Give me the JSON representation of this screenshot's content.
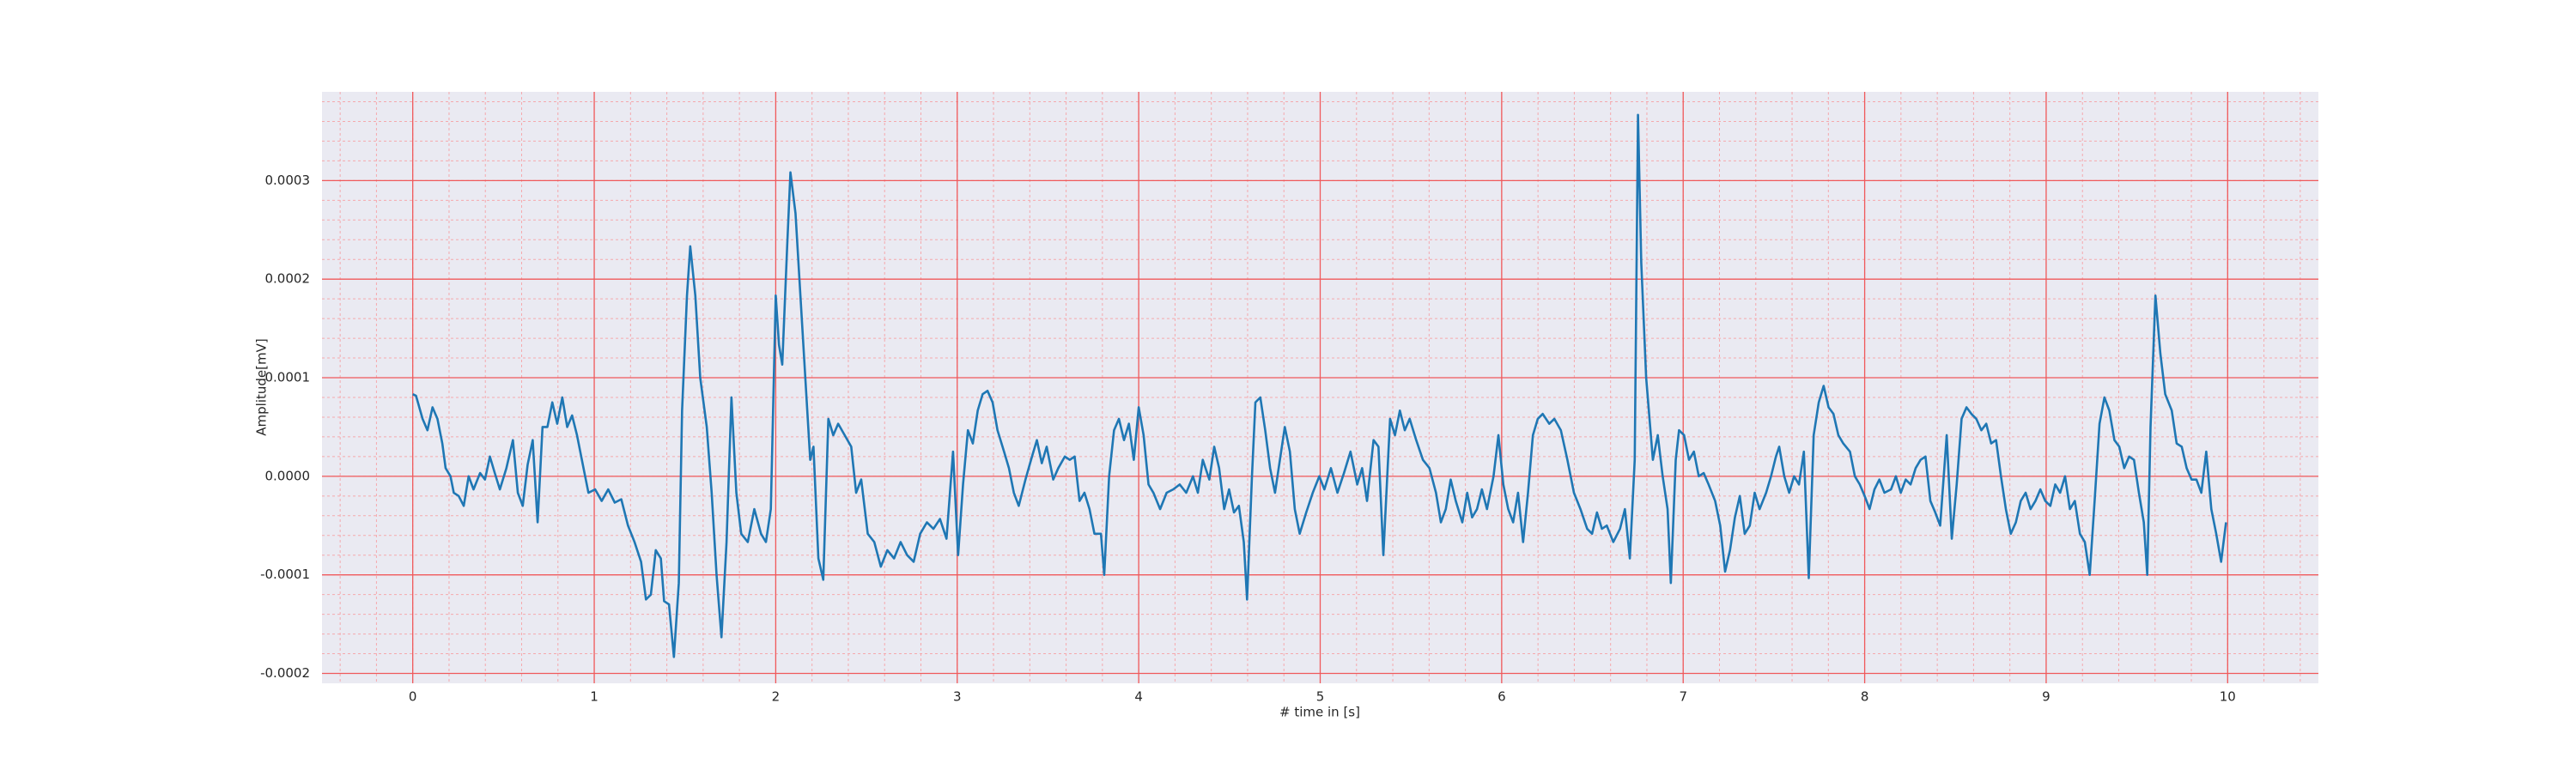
{
  "chart_data": {
    "type": "line",
    "xlabel": "# time in [s]",
    "ylabel": "Amplitude[mV]",
    "color": "#1f77b4",
    "background": "#eaeaf2",
    "grid_color": "#f0595b",
    "minor_grid_color": "#f5a9ad",
    "grid": true,
    "minor_grid_divisions": 5,
    "xlim": [
      -0.5,
      10.5
    ],
    "xticks": [
      0,
      1,
      2,
      3,
      4,
      5,
      6,
      7,
      8,
      9,
      10
    ],
    "ylim": [
      -0.00021,
      0.00039
    ],
    "yticks": [
      -0.0002,
      -0.0001,
      {
        "value": 0,
        "label": "0.0000"
      },
      0.0001,
      0.0002,
      0.0003
    ],
    "x": [
      0,
      0.018,
      0.054,
      0.081,
      0.109,
      0.136,
      0.163,
      0.181,
      0.208,
      0.226,
      0.253,
      0.281,
      0.308,
      0.335,
      0.371,
      0.398,
      0.425,
      0.452,
      0.48,
      0.516,
      0.552,
      0.579,
      0.606,
      0.633,
      0.661,
      0.688,
      0.715,
      0.742,
      0.769,
      0.796,
      0.824,
      0.851,
      0.878,
      0.905,
      0.941,
      0.968,
      1.005,
      1.041,
      1.077,
      1.113,
      1.149,
      1.186,
      1.222,
      1.258,
      1.285,
      1.312,
      1.339,
      1.367,
      1.385,
      1.412,
      1.439,
      1.466,
      1.484,
      1.511,
      1.529,
      1.557,
      1.584,
      1.62,
      1.647,
      1.674,
      1.701,
      1.729,
      1.756,
      1.783,
      1.81,
      1.846,
      1.882,
      1.919,
      1.946,
      1.973,
      2.0,
      2.018,
      2.036,
      2.063,
      2.081,
      2.109,
      2.136,
      2.163,
      2.19,
      2.208,
      2.235,
      2.262,
      2.29,
      2.317,
      2.344,
      2.38,
      2.416,
      2.443,
      2.471,
      2.507,
      2.543,
      2.579,
      2.615,
      2.652,
      2.688,
      2.724,
      2.76,
      2.796,
      2.833,
      2.869,
      2.905,
      2.941,
      2.977,
      3.005,
      3.032,
      3.059,
      3.086,
      3.113,
      3.14,
      3.167,
      3.195,
      3.222,
      3.258,
      3.285,
      3.312,
      3.339,
      3.376,
      3.412,
      3.439,
      3.466,
      3.493,
      3.529,
      3.557,
      3.593,
      3.62,
      3.647,
      3.674,
      3.701,
      3.729,
      3.756,
      3.792,
      3.81,
      3.837,
      3.864,
      3.891,
      3.919,
      3.946,
      3.973,
      4.0,
      4.027,
      4.054,
      4.081,
      4.118,
      4.154,
      4.19,
      4.226,
      4.262,
      4.299,
      4.326,
      4.353,
      4.389,
      4.416,
      4.443,
      4.471,
      4.498,
      4.525,
      4.552,
      4.579,
      4.597,
      4.624,
      4.643,
      4.67,
      4.697,
      4.724,
      4.751,
      4.778,
      4.805,
      4.833,
      4.86,
      4.887,
      4.923,
      4.959,
      4.995,
      5.023,
      5.059,
      5.095,
      5.131,
      5.167,
      5.204,
      5.231,
      5.258,
      5.294,
      5.321,
      5.348,
      5.385,
      5.412,
      5.439,
      5.466,
      5.493,
      5.529,
      5.566,
      5.602,
      5.638,
      5.665,
      5.692,
      5.719,
      5.747,
      5.783,
      5.81,
      5.837,
      5.864,
      5.891,
      5.919,
      5.955,
      5.982,
      6.009,
      6.036,
      6.063,
      6.09,
      6.118,
      6.145,
      6.172,
      6.199,
      6.226,
      6.262,
      6.29,
      6.326,
      6.362,
      6.398,
      6.434,
      6.471,
      6.498,
      6.525,
      6.552,
      6.579,
      6.615,
      6.652,
      6.679,
      6.706,
      6.733,
      6.751,
      6.769,
      6.796,
      6.833,
      6.86,
      6.887,
      6.914,
      6.932,
      6.959,
      6.977,
      7.005,
      7.032,
      7.059,
      7.086,
      7.113,
      7.14,
      7.176,
      7.204,
      7.231,
      7.258,
      7.285,
      7.312,
      7.339,
      7.367,
      7.394,
      7.421,
      7.457,
      7.484,
      7.511,
      7.529,
      7.557,
      7.584,
      7.611,
      7.638,
      7.665,
      7.692,
      7.719,
      7.747,
      7.774,
      7.801,
      7.828,
      7.855,
      7.882,
      7.919,
      7.946,
      7.973,
      8.0,
      8.027,
      8.054,
      8.081,
      8.109,
      8.145,
      8.172,
      8.199,
      8.226,
      8.253,
      8.281,
      8.308,
      8.335,
      8.362,
      8.389,
      8.416,
      8.452,
      8.48,
      8.507,
      8.534,
      8.561,
      8.588,
      8.615,
      8.643,
      8.67,
      8.697,
      8.724,
      8.751,
      8.778,
      8.805,
      8.833,
      8.86,
      8.887,
      8.914,
      8.941,
      8.968,
      8.995,
      9.023,
      9.05,
      9.077,
      9.104,
      9.131,
      9.158,
      9.186,
      9.213,
      9.24,
      9.267,
      9.294,
      9.321,
      9.348,
      9.376,
      9.403,
      9.43,
      9.457,
      9.484,
      9.511,
      9.538,
      9.557,
      9.575,
      9.602,
      9.629,
      9.656,
      9.692,
      9.719,
      9.747,
      9.774,
      9.801,
      9.828,
      9.855,
      9.882,
      9.91,
      9.937,
      9.964,
      9.991
    ],
    "values": [
      8.33e-05,
      8.17e-05,
      5.83e-05,
      4.67e-05,
      7e-05,
      5.83e-05,
      3.33e-05,
      8.3e-06,
      0,
      -1.67e-05,
      -2e-05,
      -3e-05,
      0,
      -1.33e-05,
      3.3e-06,
      -3.3e-06,
      2e-05,
      3.3e-06,
      -1.33e-05,
      8.3e-06,
      3.67e-05,
      -1.67e-05,
      -3e-05,
      1.17e-05,
      3.67e-05,
      -4.67e-05,
      5e-05,
      5e-05,
      7.5e-05,
      5.33e-05,
      8e-05,
      5e-05,
      6.17e-05,
      4.17e-05,
      8.3e-06,
      -1.67e-05,
      -1.33e-05,
      -2.5e-05,
      -1.33e-05,
      -2.67e-05,
      -2.33e-05,
      -5e-05,
      -6.67e-05,
      -8.67e-05,
      -0.000125,
      -0.00012,
      -7.5e-05,
      -8.33e-05,
      -0.0001267,
      -0.00013,
      -0.0001833,
      -0.0001083,
      6.67e-05,
      0.0001833,
      0.0002333,
      0.0001833,
      0.0001,
      5e-05,
      -1.67e-05,
      -0.0001,
      -0.0001633,
      -6.67e-05,
      8e-05,
      -1.67e-05,
      -5.83e-05,
      -6.67e-05,
      -3.33e-05,
      -5.83e-05,
      -6.67e-05,
      -3.33e-05,
      0.0001833,
      0.0001333,
      0.0001133,
      0.0002333,
      0.0003083,
      0.0002667,
      0.0001833,
      0.0001,
      1.67e-05,
      3e-05,
      -8.33e-05,
      -0.000105,
      5.83e-05,
      4.17e-05,
      5.33e-05,
      4.17e-05,
      3e-05,
      -1.67e-05,
      -3.3e-06,
      -5.83e-05,
      -6.67e-05,
      -9.17e-05,
      -7.5e-05,
      -8.33e-05,
      -6.67e-05,
      -8e-05,
      -8.67e-05,
      -5.83e-05,
      -4.67e-05,
      -5.33e-05,
      -4.33e-05,
      -6.33e-05,
      2.5e-05,
      -8e-05,
      -8.3e-06,
      4.67e-05,
      3.33e-05,
      6.67e-05,
      8.33e-05,
      8.67e-05,
      7.5e-05,
      4.67e-05,
      2.5e-05,
      8.3e-06,
      -1.67e-05,
      -3e-05,
      -3.3e-06,
      2e-05,
      3.67e-05,
      1.33e-05,
      3e-05,
      -3.3e-06,
      8.3e-06,
      2e-05,
      1.67e-05,
      2e-05,
      -2.5e-05,
      -1.67e-05,
      -3.33e-05,
      -5.83e-05,
      -5.83e-05,
      -0.0001,
      0,
      4.67e-05,
      5.83e-05,
      3.67e-05,
      5.33e-05,
      1.67e-05,
      7e-05,
      4.17e-05,
      -8.3e-06,
      -1.67e-05,
      -3.33e-05,
      -1.67e-05,
      -1.33e-05,
      -8.3e-06,
      -1.67e-05,
      0,
      -1.67e-05,
      1.67e-05,
      -3.3e-06,
      3e-05,
      8.3e-06,
      -3.33e-05,
      -1.33e-05,
      -3.67e-05,
      -3e-05,
      -6.67e-05,
      -0.000125,
      0,
      7.5e-05,
      8e-05,
      4.67e-05,
      8.3e-06,
      -1.67e-05,
      1.67e-05,
      5e-05,
      2.5e-05,
      -3.33e-05,
      -5.83e-05,
      -3.67e-05,
      -1.67e-05,
      0,
      -1.33e-05,
      8.3e-06,
      -1.67e-05,
      3.3e-06,
      2.5e-05,
      -8.3e-06,
      8.3e-06,
      -2.5e-05,
      3.67e-05,
      3e-05,
      -8e-05,
      5.83e-05,
      4.17e-05,
      6.67e-05,
      4.67e-05,
      5.83e-05,
      3.67e-05,
      1.67e-05,
      8.3e-06,
      -1.67e-05,
      -4.67e-05,
      -3.33e-05,
      -3.3e-06,
      -2.5e-05,
      -4.67e-05,
      -1.67e-05,
      -4.17e-05,
      -3.33e-05,
      -1.33e-05,
      -3.33e-05,
      0,
      4.17e-05,
      -8.3e-06,
      -3.33e-05,
      -4.67e-05,
      -1.67e-05,
      -6.67e-05,
      -1.67e-05,
      4.17e-05,
      5.83e-05,
      6.33e-05,
      5.33e-05,
      5.83e-05,
      4.67e-05,
      1.67e-05,
      -1.67e-05,
      -3.33e-05,
      -5.33e-05,
      -5.83e-05,
      -3.67e-05,
      -5.33e-05,
      -5e-05,
      -6.67e-05,
      -5.33e-05,
      -3.33e-05,
      -8.33e-05,
      1.67e-05,
      0.0003667,
      0.0002167,
      0.0001,
      1.67e-05,
      4.17e-05,
      0,
      -3.33e-05,
      -0.0001083,
      1.67e-05,
      4.67e-05,
      4.17e-05,
      1.67e-05,
      2.5e-05,
      0,
      3.3e-06,
      -8.3e-06,
      -2.5e-05,
      -5e-05,
      -9.67e-05,
      -7.5e-05,
      -4.17e-05,
      -2e-05,
      -5.83e-05,
      -5e-05,
      -1.67e-05,
      -3.33e-05,
      -1.67e-05,
      0,
      2e-05,
      3e-05,
      0,
      -1.67e-05,
      0,
      -8.3e-06,
      2.5e-05,
      -0.0001033,
      4.17e-05,
      7.5e-05,
      9.17e-05,
      7e-05,
      6.33e-05,
      4.17e-05,
      3.33e-05,
      2.5e-05,
      0,
      -8.3e-06,
      -2e-05,
      -3.33e-05,
      -1.33e-05,
      -3.3e-06,
      -1.67e-05,
      -1.33e-05,
      0,
      -1.67e-05,
      -3.3e-06,
      -8.3e-06,
      8.3e-06,
      1.67e-05,
      2e-05,
      -2.5e-05,
      -3.67e-05,
      -5e-05,
      4.17e-05,
      -6.33e-05,
      -8.3e-06,
      5.83e-05,
      7e-05,
      6.33e-05,
      5.83e-05,
      4.67e-05,
      5.33e-05,
      3.33e-05,
      3.67e-05,
      0,
      -3.33e-05,
      -5.83e-05,
      -4.67e-05,
      -2.5e-05,
      -1.67e-05,
      -3.33e-05,
      -2.5e-05,
      -1.33e-05,
      -2.5e-05,
      -3e-05,
      -8.3e-06,
      -1.67e-05,
      0,
      -3.33e-05,
      -2.5e-05,
      -5.83e-05,
      -6.67e-05,
      -0.0001,
      -2.5e-05,
      5.33e-05,
      8e-05,
      6.67e-05,
      3.67e-05,
      3e-05,
      8.3e-06,
      2e-05,
      1.67e-05,
      -1.67e-05,
      -4.67e-05,
      -0.0001,
      5e-05,
      0.0001833,
      0.000125,
      8.33e-05,
      6.67e-05,
      3.33e-05,
      3e-05,
      8.3e-06,
      -3.3e-06,
      -3.3e-06,
      -1.67e-05,
      2.5e-05,
      -3.33e-05,
      -5.83e-05,
      -8.67e-05,
      -4.67e-05
    ]
  }
}
